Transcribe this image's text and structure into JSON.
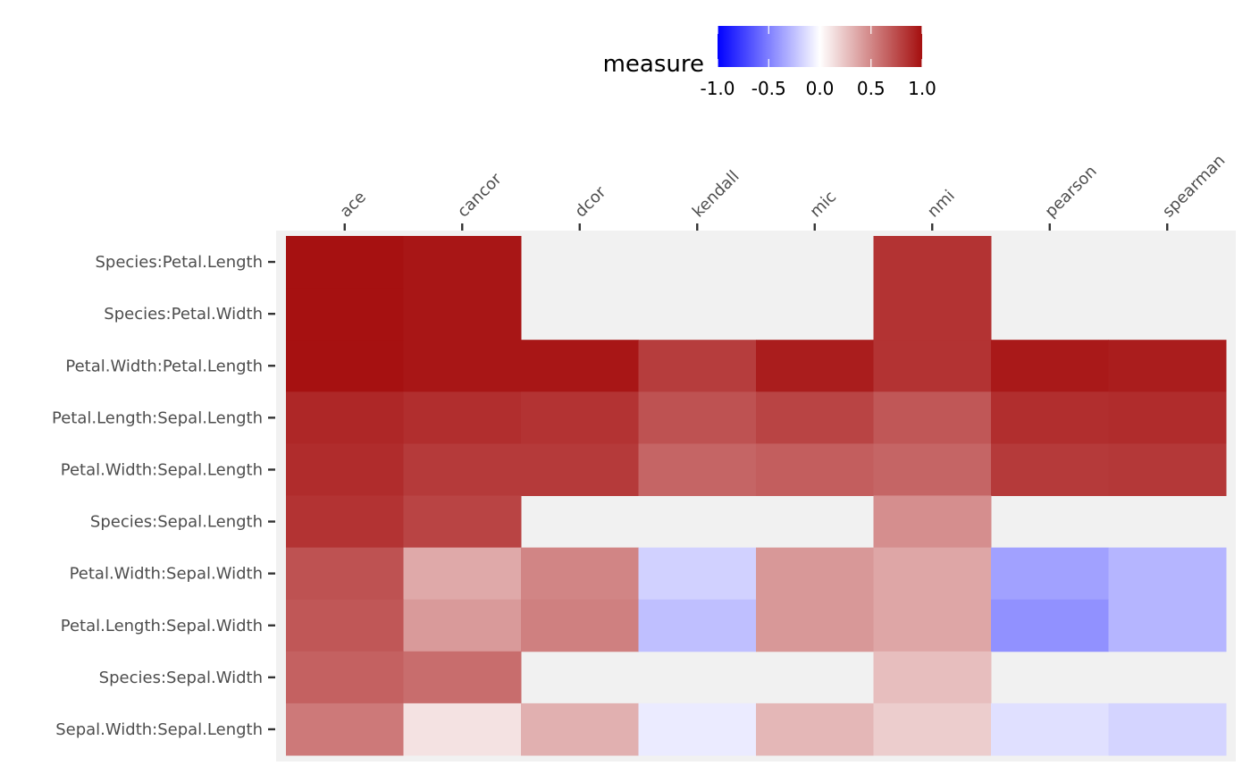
{
  "chart_data": {
    "type": "heatmap",
    "title": "",
    "xlabel": "",
    "ylabel": "",
    "x_axis_position": "top",
    "x_categories": [
      "ace",
      "cancor",
      "dcor",
      "kendall",
      "mic",
      "nmi",
      "pearson",
      "spearman"
    ],
    "y_categories": [
      "Species:Petal.Length",
      "Species:Petal.Width",
      "Petal.Width:Petal.Length",
      "Petal.Length:Sepal.Length",
      "Petal.Width:Sepal.Length",
      "Species:Sepal.Length",
      "Petal.Width:Sepal.Width",
      "Petal.Length:Sepal.Width",
      "Species:Sepal.Width",
      "Sepal.Width:Sepal.Length"
    ],
    "values": [
      [
        0.99,
        0.97,
        null,
        null,
        null,
        0.85,
        null,
        null
      ],
      [
        0.99,
        0.97,
        null,
        null,
        null,
        0.85,
        null,
        null
      ],
      [
        0.99,
        0.97,
        0.97,
        0.81,
        0.94,
        0.85,
        0.96,
        0.94
      ],
      [
        0.9,
        0.87,
        0.85,
        0.72,
        0.78,
        0.7,
        0.87,
        0.88
      ],
      [
        0.88,
        0.82,
        0.82,
        0.64,
        0.67,
        0.64,
        0.82,
        0.83
      ],
      [
        0.85,
        0.78,
        null,
        null,
        null,
        0.47,
        null,
        null
      ],
      [
        0.72,
        0.36,
        0.51,
        -0.18,
        0.43,
        0.37,
        -0.37,
        -0.29
      ],
      [
        0.7,
        0.42,
        0.53,
        -0.25,
        0.43,
        0.37,
        -0.43,
        -0.29
      ],
      [
        0.66,
        0.61,
        null,
        null,
        null,
        0.27,
        null,
        null
      ],
      [
        0.56,
        0.12,
        0.33,
        -0.08,
        0.3,
        0.21,
        -0.12,
        -0.17
      ]
    ],
    "legend": {
      "title": "measure",
      "position": "top",
      "range": [
        -1,
        1
      ],
      "ticks": [
        -1.0,
        -0.5,
        0.0,
        0.5,
        1.0
      ],
      "tick_labels": [
        "-1.0",
        "-0.5",
        "0.0",
        "0.5",
        "1.0"
      ],
      "colors": {
        "low": "#0000ff",
        "mid": "#ffffff",
        "high": "#a50f0f"
      }
    },
    "panel_background": "#f1f1f1",
    "grid": false
  }
}
